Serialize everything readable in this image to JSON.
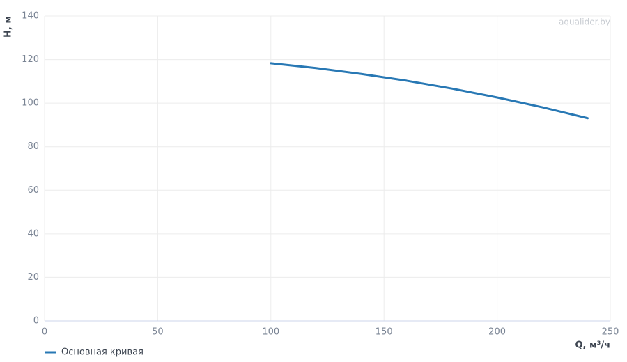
{
  "chart_data": {
    "type": "line",
    "watermark": "aqualider.by",
    "x_label": "Q, м³/ч",
    "y_label": "H, м",
    "x": [
      100,
      120,
      140,
      160,
      180,
      200,
      220,
      240
    ],
    "series": [
      {
        "name": "Основная кривая",
        "color": "#2878b4",
        "values": [
          118.3,
          116.1,
          113.4,
          110.3,
          106.7,
          102.6,
          98.1,
          93.1
        ]
      }
    ],
    "xlim": [
      0,
      250
    ],
    "xticks": [
      0,
      50,
      100,
      150,
      200,
      250
    ],
    "ylim": [
      0,
      140
    ],
    "yticks": [
      0,
      20,
      40,
      60,
      80,
      100,
      120,
      140
    ],
    "grid": true,
    "legend": "bottom-left"
  }
}
